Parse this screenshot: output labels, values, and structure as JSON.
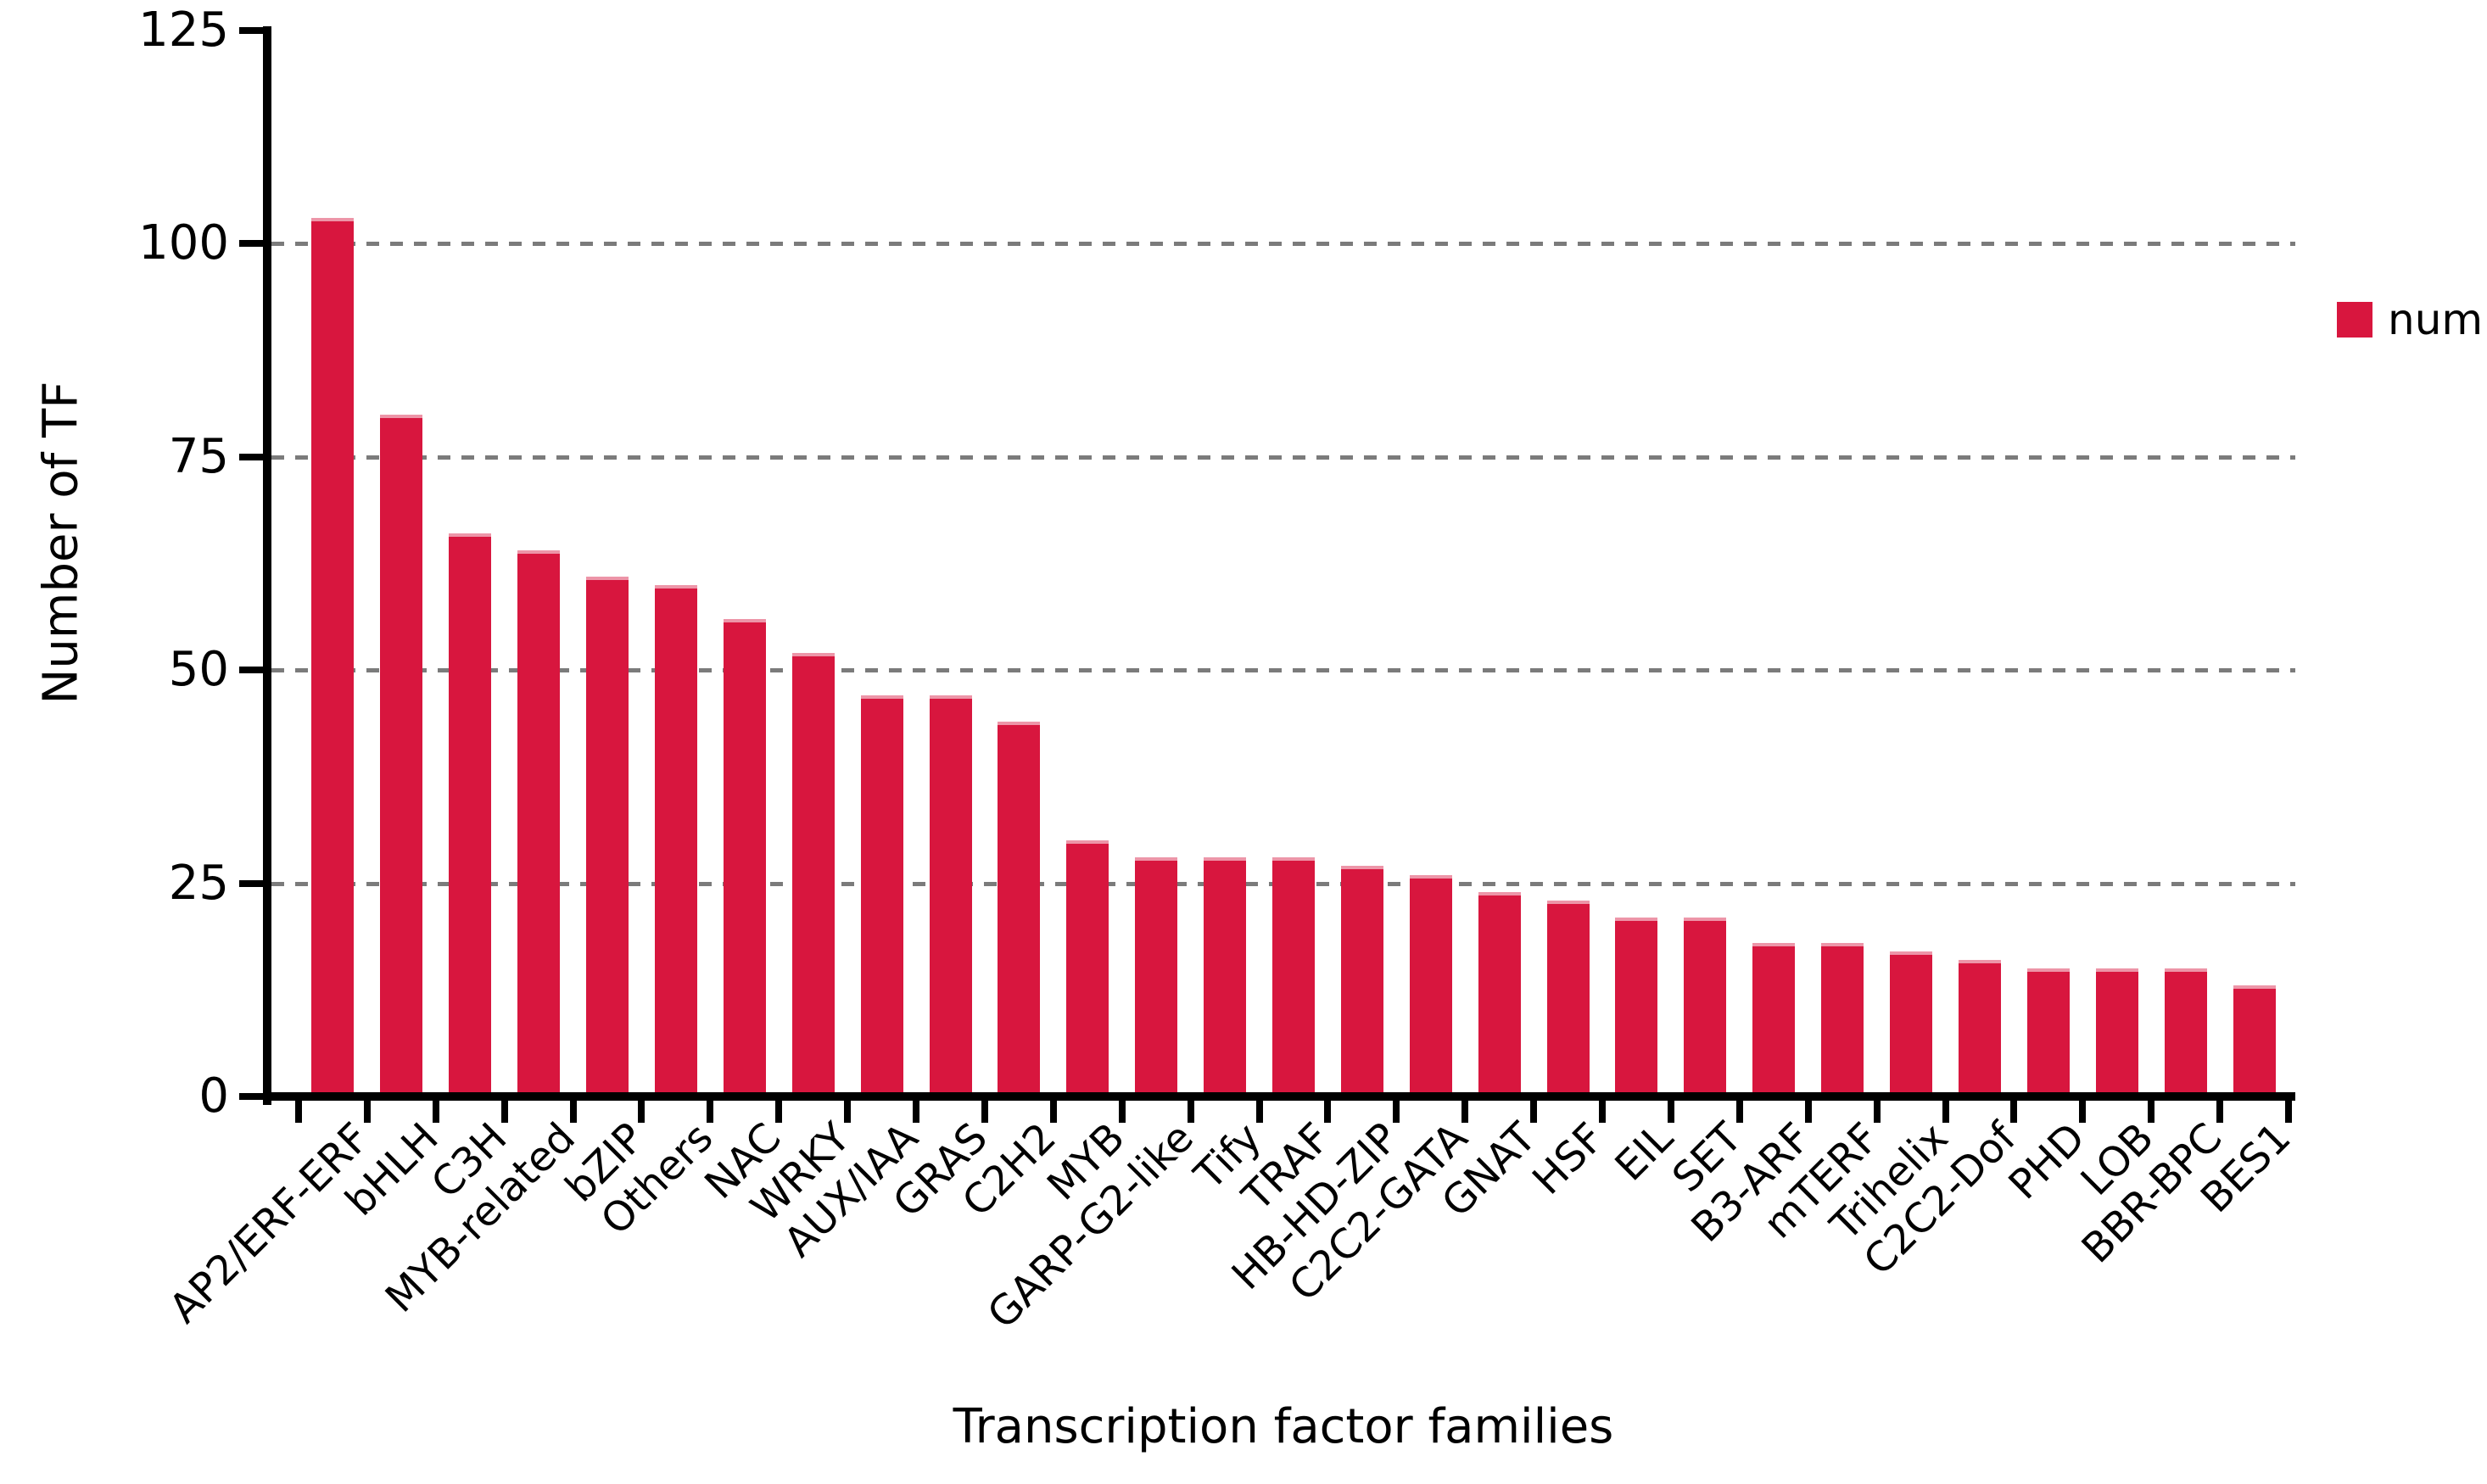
{
  "chart_data": {
    "type": "bar",
    "title": "",
    "xlabel": "Transcription factor families",
    "ylabel": "Number of TF",
    "legend": {
      "label": "num",
      "position": "right"
    },
    "bar_color": "#d8163e",
    "bar_cap_color": "rgba(255,255,255,0.55)",
    "grid_color": "#7b7b7b",
    "grid_style": "dashed-horizontal",
    "grid_values": [
      25,
      50,
      75,
      100
    ],
    "axis_color": "#000000",
    "ylim": [
      0,
      125
    ],
    "yticks": [
      0,
      25,
      50,
      75,
      100,
      125
    ],
    "categories": [
      "AP2/ERF-ERF",
      "bHLH",
      "C3H",
      "MYB-related",
      "bZIP",
      "Others",
      "NAC",
      "WRKY",
      "AUX/IAA",
      "GRAS",
      "C2H2",
      "MYB",
      "GARP-G2-like",
      "Tify",
      "TRAF",
      "HB-HD-ZIP",
      "C2C2-GATA",
      "GNAT",
      "HSF",
      "EIL",
      "SET",
      "B3-ARF",
      "mTERF",
      "Trihelix",
      "C2C2-Dof",
      "PHD",
      "LOB",
      "BBR-BPC",
      "BES1"
    ],
    "series": [
      {
        "name": "num",
        "values": [
          103,
          80,
          66,
          64,
          61,
          60,
          56,
          52,
          47,
          47,
          44,
          30,
          28,
          28,
          28,
          27,
          26,
          24,
          23,
          21,
          21,
          18,
          18,
          17,
          16,
          15,
          15,
          15,
          13
        ]
      }
    ]
  }
}
